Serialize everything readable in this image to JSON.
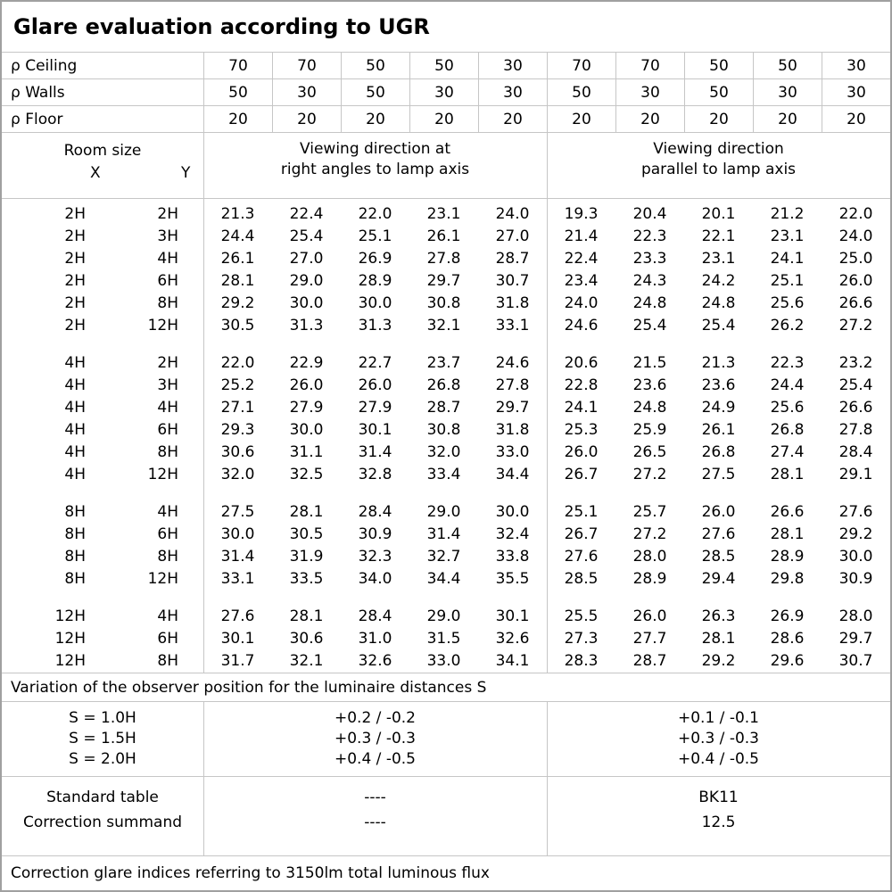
{
  "title": "Glare evaluation according to UGR",
  "colors": {
    "grid_line": "#c6c6c6",
    "outer_border": "#a0a0a0",
    "text": "#000000",
    "background": "#ffffff"
  },
  "reflectance_rows": [
    {
      "label": "ρ Ceiling",
      "values": [
        "70",
        "70",
        "50",
        "50",
        "30",
        "70",
        "70",
        "50",
        "50",
        "30"
      ]
    },
    {
      "label": "ρ Walls",
      "values": [
        "50",
        "30",
        "50",
        "30",
        "30",
        "50",
        "30",
        "50",
        "30",
        "30"
      ]
    },
    {
      "label": "ρ Floor",
      "values": [
        "20",
        "20",
        "20",
        "20",
        "20",
        "20",
        "20",
        "20",
        "20",
        "20"
      ]
    }
  ],
  "header": {
    "room_size_label": "Room size",
    "x_label": "X",
    "y_label": "Y",
    "group1_line1": "Viewing direction at",
    "group1_line2": "right angles to lamp axis",
    "group2_line1": "Viewing direction",
    "group2_line2": "parallel to lamp axis"
  },
  "ugr_blocks": [
    {
      "rows": [
        {
          "x": "2H",
          "y": "2H",
          "values": [
            "21.3",
            "22.4",
            "22.0",
            "23.1",
            "24.0",
            "19.3",
            "20.4",
            "20.1",
            "21.2",
            "22.0"
          ]
        },
        {
          "x": "2H",
          "y": "3H",
          "values": [
            "24.4",
            "25.4",
            "25.1",
            "26.1",
            "27.0",
            "21.4",
            "22.3",
            "22.1",
            "23.1",
            "24.0"
          ]
        },
        {
          "x": "2H",
          "y": "4H",
          "values": [
            "26.1",
            "27.0",
            "26.9",
            "27.8",
            "28.7",
            "22.4",
            "23.3",
            "23.1",
            "24.1",
            "25.0"
          ]
        },
        {
          "x": "2H",
          "y": "6H",
          "values": [
            "28.1",
            "29.0",
            "28.9",
            "29.7",
            "30.7",
            "23.4",
            "24.3",
            "24.2",
            "25.1",
            "26.0"
          ]
        },
        {
          "x": "2H",
          "y": "8H",
          "values": [
            "29.2",
            "30.0",
            "30.0",
            "30.8",
            "31.8",
            "24.0",
            "24.8",
            "24.8",
            "25.6",
            "26.6"
          ]
        },
        {
          "x": "2H",
          "y": "12H",
          "values": [
            "30.5",
            "31.3",
            "31.3",
            "32.1",
            "33.1",
            "24.6",
            "25.4",
            "25.4",
            "26.2",
            "27.2"
          ]
        }
      ]
    },
    {
      "rows": [
        {
          "x": "4H",
          "y": "2H",
          "values": [
            "22.0",
            "22.9",
            "22.7",
            "23.7",
            "24.6",
            "20.6",
            "21.5",
            "21.3",
            "22.3",
            "23.2"
          ]
        },
        {
          "x": "4H",
          "y": "3H",
          "values": [
            "25.2",
            "26.0",
            "26.0",
            "26.8",
            "27.8",
            "22.8",
            "23.6",
            "23.6",
            "24.4",
            "25.4"
          ]
        },
        {
          "x": "4H",
          "y": "4H",
          "values": [
            "27.1",
            "27.9",
            "27.9",
            "28.7",
            "29.7",
            "24.1",
            "24.8",
            "24.9",
            "25.6",
            "26.6"
          ]
        },
        {
          "x": "4H",
          "y": "6H",
          "values": [
            "29.3",
            "30.0",
            "30.1",
            "30.8",
            "31.8",
            "25.3",
            "25.9",
            "26.1",
            "26.8",
            "27.8"
          ]
        },
        {
          "x": "4H",
          "y": "8H",
          "values": [
            "30.6",
            "31.1",
            "31.4",
            "32.0",
            "33.0",
            "26.0",
            "26.5",
            "26.8",
            "27.4",
            "28.4"
          ]
        },
        {
          "x": "4H",
          "y": "12H",
          "values": [
            "32.0",
            "32.5",
            "32.8",
            "33.4",
            "34.4",
            "26.7",
            "27.2",
            "27.5",
            "28.1",
            "29.1"
          ]
        }
      ]
    },
    {
      "rows": [
        {
          "x": "8H",
          "y": "4H",
          "values": [
            "27.5",
            "28.1",
            "28.4",
            "29.0",
            "30.0",
            "25.1",
            "25.7",
            "26.0",
            "26.6",
            "27.6"
          ]
        },
        {
          "x": "8H",
          "y": "6H",
          "values": [
            "30.0",
            "30.5",
            "30.9",
            "31.4",
            "32.4",
            "26.7",
            "27.2",
            "27.6",
            "28.1",
            "29.2"
          ]
        },
        {
          "x": "8H",
          "y": "8H",
          "values": [
            "31.4",
            "31.9",
            "32.3",
            "32.7",
            "33.8",
            "27.6",
            "28.0",
            "28.5",
            "28.9",
            "30.0"
          ]
        },
        {
          "x": "8H",
          "y": "12H",
          "values": [
            "33.1",
            "33.5",
            "34.0",
            "34.4",
            "35.5",
            "28.5",
            "28.9",
            "29.4",
            "29.8",
            "30.9"
          ]
        }
      ]
    },
    {
      "rows": [
        {
          "x": "12H",
          "y": "4H",
          "values": [
            "27.6",
            "28.1",
            "28.4",
            "29.0",
            "30.1",
            "25.5",
            "26.0",
            "26.3",
            "26.9",
            "28.0"
          ]
        },
        {
          "x": "12H",
          "y": "6H",
          "values": [
            "30.1",
            "30.6",
            "31.0",
            "31.5",
            "32.6",
            "27.3",
            "27.7",
            "28.1",
            "28.6",
            "29.7"
          ]
        },
        {
          "x": "12H",
          "y": "8H",
          "values": [
            "31.7",
            "32.1",
            "32.6",
            "33.0",
            "34.1",
            "28.3",
            "28.7",
            "29.2",
            "29.6",
            "30.7"
          ]
        }
      ]
    }
  ],
  "variation_note": "Variation of the observer position for the luminaire distances S",
  "spacing_section": {
    "rows": [
      {
        "label": "S = 1.0H",
        "group1": "+0.2 / -0.2",
        "group2": "+0.1 / -0.1"
      },
      {
        "label": "S = 1.5H",
        "group1": "+0.3 / -0.3",
        "group2": "+0.3 / -0.3"
      },
      {
        "label": "S = 2.0H",
        "group1": "+0.4 / -0.5",
        "group2": "+0.4 / -0.5"
      }
    ]
  },
  "summary_section": {
    "rows": [
      {
        "label": "Standard table",
        "group1": "----",
        "group2": "BK11"
      },
      {
        "label": "Correction summand",
        "group1": "----",
        "group2": "12.5"
      }
    ]
  },
  "footer_note": "Correction glare indices referring to 3150lm total luminous flux"
}
